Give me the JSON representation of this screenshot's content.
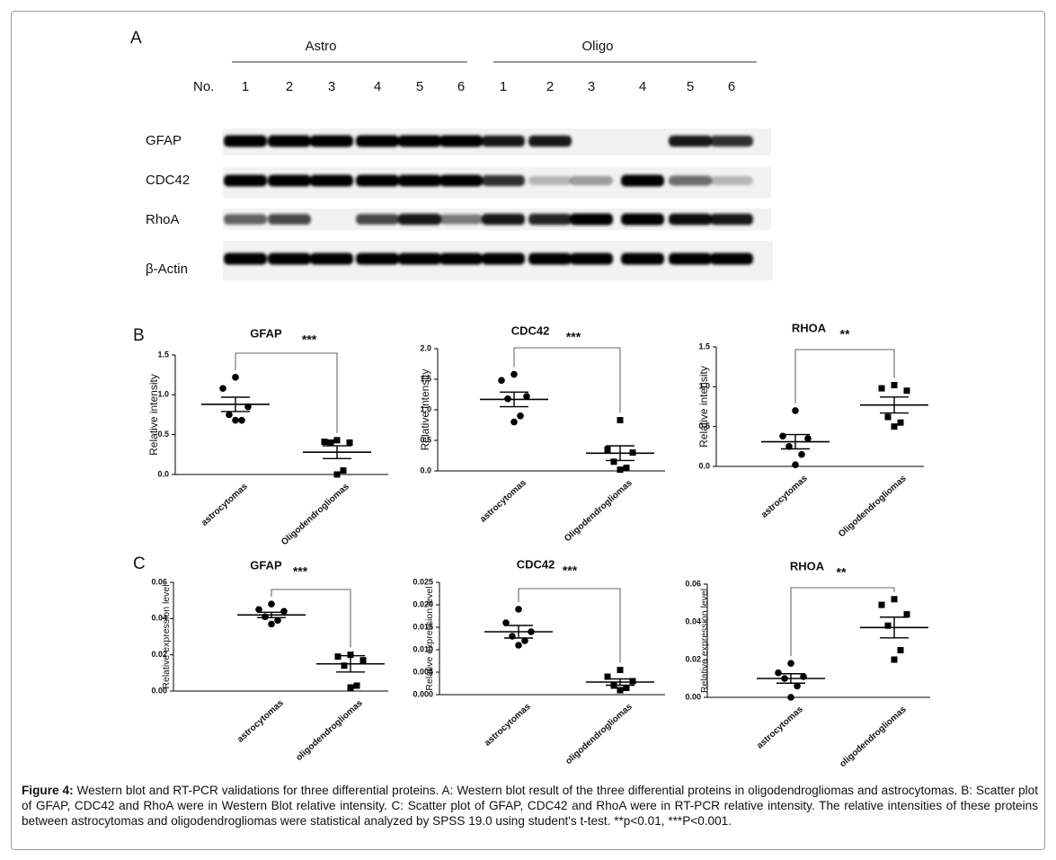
{
  "panel_labels": [
    "A",
    "B",
    "C"
  ],
  "blot": {
    "groups": [
      "Astro",
      "Oligo"
    ],
    "lane_header": "No.",
    "lanes": [
      "1",
      "2",
      "3",
      "4",
      "5",
      "6",
      "1",
      "2",
      "3",
      "4",
      "5",
      "6"
    ],
    "rows": [
      "GFAP",
      "CDC42",
      "RhoA",
      "β-Actin"
    ]
  },
  "chart_data": [
    {
      "type": "scatter",
      "title": "GFAP",
      "annotation": "***",
      "ylabel": "Relative intensity",
      "categories": [
        "astrocytomas",
        "Oligodendrogliomas"
      ],
      "groups": [
        {
          "marker": "circle",
          "values": [
            1.22,
            1.08,
            0.85,
            0.75,
            0.68,
            0.68
          ],
          "mean": 0.88,
          "sem": 0.09
        },
        {
          "marker": "square",
          "values": [
            0.43,
            0.41,
            0.4,
            0.4,
            0.05,
            0.0
          ],
          "mean": 0.28,
          "sem": 0.08
        }
      ],
      "ylim": [
        0,
        1.5
      ],
      "yticks": [
        {
          "value": 0,
          "label": "0.0"
        },
        {
          "value": 0.5,
          "label": "0.5"
        },
        {
          "value": 1,
          "label": "1.0"
        },
        {
          "value": 1.5,
          "label": "1.5"
        }
      ]
    },
    {
      "type": "scatter",
      "title": "CDC42",
      "annotation": "***",
      "ylabel": "Relative intensity",
      "categories": [
        "astrocytomas",
        "Oligodendrogliomas"
      ],
      "groups": [
        {
          "marker": "circle",
          "values": [
            1.58,
            1.48,
            1.22,
            1.18,
            0.9,
            0.8
          ],
          "mean": 1.17,
          "sem": 0.12
        },
        {
          "marker": "square",
          "values": [
            0.83,
            0.35,
            0.3,
            0.15,
            0.05,
            0.02
          ],
          "mean": 0.29,
          "sem": 0.12
        }
      ],
      "ylim": [
        0,
        2
      ],
      "yticks": [
        {
          "value": 0,
          "label": "0.0"
        },
        {
          "value": 0.5,
          "label": "0.5"
        },
        {
          "value": 1,
          "label": "1.0"
        },
        {
          "value": 1.5,
          "label": "1.5"
        },
        {
          "value": 2,
          "label": "2.0"
        }
      ]
    },
    {
      "type": "scatter",
      "title": "RHOA",
      "annotation": "**",
      "ylabel": "Relative intensity",
      "categories": [
        "astrocytomas",
        "Oligodendrogliomas"
      ],
      "groups": [
        {
          "marker": "circle",
          "values": [
            0.7,
            0.38,
            0.35,
            0.25,
            0.15,
            0.02
          ],
          "mean": 0.31,
          "sem": 0.09
        },
        {
          "marker": "square",
          "values": [
            1.02,
            0.98,
            0.95,
            0.62,
            0.55,
            0.5
          ],
          "mean": 0.77,
          "sem": 0.1
        }
      ],
      "ylim": [
        0,
        1.5
      ],
      "yticks": [
        {
          "value": 0,
          "label": "0.0"
        },
        {
          "value": 0.5,
          "label": "0.5"
        },
        {
          "value": 1,
          "label": "1.0"
        },
        {
          "value": 1.5,
          "label": "1.5"
        }
      ]
    },
    {
      "type": "scatter",
      "title": "GFAP",
      "annotation": "***",
      "ylabel": "Relative expression level",
      "categories": [
        "astrocytomas",
        "oligodendrogliomas"
      ],
      "groups": [
        {
          "marker": "circle",
          "values": [
            0.048,
            0.045,
            0.044,
            0.041,
            0.039,
            0.037
          ],
          "mean": 0.042,
          "sem": 0.0015
        },
        {
          "marker": "square",
          "values": [
            0.02,
            0.019,
            0.017,
            0.014,
            0.003,
            0.002
          ],
          "mean": 0.015,
          "sem": 0.0045
        }
      ],
      "ylim": [
        0,
        0.06
      ],
      "yticks": [
        {
          "value": 0,
          "label": "0.00"
        },
        {
          "value": 0.02,
          "label": "0.02"
        },
        {
          "value": 0.04,
          "label": "0.04"
        },
        {
          "value": 0.06,
          "label": "0.06"
        }
      ]
    },
    {
      "type": "scatter",
      "title": "CDC42",
      "annotation": "***",
      "ylabel": "Relative expression level",
      "categories": [
        "astrocytomas",
        "oligodendrogliomas"
      ],
      "groups": [
        {
          "marker": "circle",
          "values": [
            0.019,
            0.016,
            0.014,
            0.013,
            0.012,
            0.011
          ],
          "mean": 0.014,
          "sem": 0.0014
        },
        {
          "marker": "square",
          "values": [
            0.0055,
            0.004,
            0.003,
            0.002,
            0.0015,
            0.001
          ],
          "mean": 0.0028,
          "sem": 0.0007
        }
      ],
      "ylim": [
        0,
        0.025
      ],
      "yticks": [
        {
          "value": 0,
          "label": "0.000"
        },
        {
          "value": 0.005,
          "label": "0.005"
        },
        {
          "value": 0.01,
          "label": "0.010"
        },
        {
          "value": 0.015,
          "label": "0.015"
        },
        {
          "value": 0.02,
          "label": "0.020"
        },
        {
          "value": 0.025,
          "label": "0.025"
        }
      ]
    },
    {
      "type": "scatter",
      "title": "RHOA",
      "annotation": "**",
      "ylabel": "Relative expression level",
      "categories": [
        "astrocytomas",
        "oligodendrogliomas"
      ],
      "groups": [
        {
          "marker": "circle",
          "values": [
            0.018,
            0.013,
            0.011,
            0.01,
            0.006,
            0.0
          ],
          "mean": 0.01,
          "sem": 0.0025
        },
        {
          "marker": "square",
          "values": [
            0.052,
            0.049,
            0.044,
            0.038,
            0.025,
            0.02
          ],
          "mean": 0.037,
          "sem": 0.0055
        }
      ],
      "ylim": [
        0,
        0.06
      ],
      "yticks": [
        {
          "value": 0,
          "label": "0.00"
        },
        {
          "value": 0.02,
          "label": "0.02"
        },
        {
          "value": 0.04,
          "label": "0.04"
        },
        {
          "value": 0.06,
          "label": "0.06"
        }
      ]
    }
  ],
  "caption": {
    "label": "Figure 4:",
    "text": " Western blot and RT-PCR validations for three differential proteins. A: Western blot result of the three differential proteins in oligodendrogliomas and astrocytomas. B: Scatter plot of GFAP, CDC42 and RhoA were in Western Blot relative intensity. C: Scatter plot of GFAP, CDC42 and RhoA were in RT-PCR relative intensity. The relative intensities of these proteins between astrocytomas and oligodendrogliomas were statistical analyzed by SPSS 19.0 using student's t-test. **p<0.01, ***P<0.001."
  }
}
